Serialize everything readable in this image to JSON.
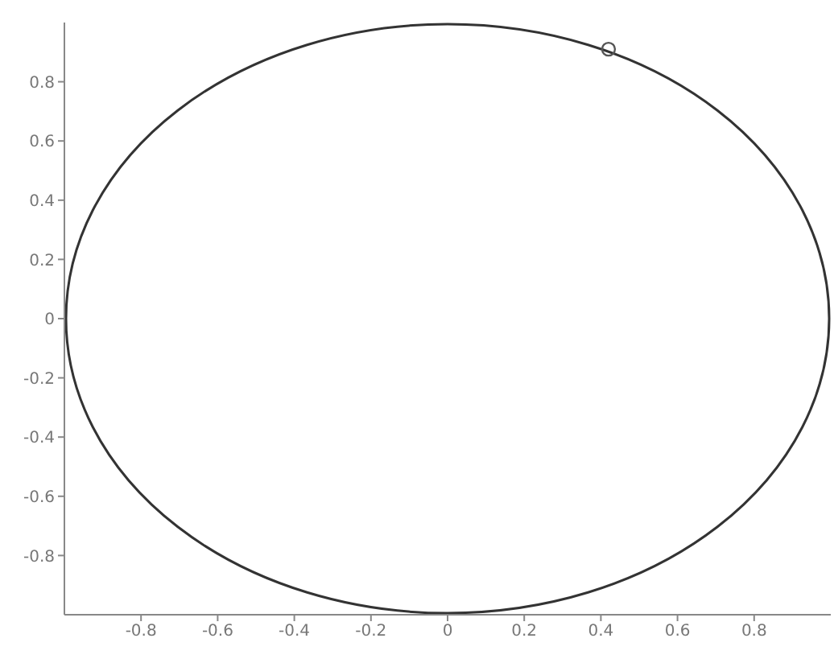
{
  "chart_data": {
    "type": "scatter",
    "xlim": [
      -1,
      1
    ],
    "ylim": [
      -1,
      1
    ],
    "xticks": [
      -0.8,
      -0.6,
      -0.4,
      -0.2,
      0,
      0.2,
      0.4,
      0.6,
      0.8
    ],
    "yticks": [
      -0.8,
      -0.6,
      -0.4,
      -0.2,
      0,
      0.2,
      0.4,
      0.6,
      0.8
    ],
    "grid": false,
    "marker": "circle",
    "color": "#555555",
    "x": [
      0.42
    ],
    "values": [
      0.91
    ]
  }
}
